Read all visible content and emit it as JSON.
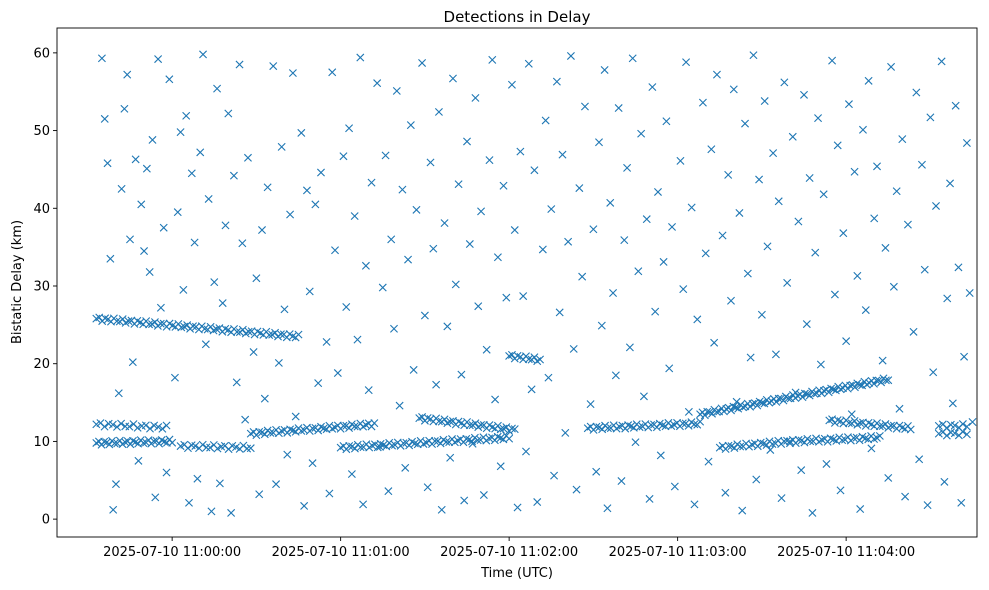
{
  "chart_data": {
    "type": "scatter",
    "title": "Detections in Delay",
    "xlabel": "Time (UTC)",
    "ylabel": "Bistatic Delay (km)",
    "x_units": "seconds after 2025-07-10 11:00:00",
    "xlim": [
      -41,
      286.6
    ],
    "ylim": [
      -2.3,
      63.2
    ],
    "xticks": [
      {
        "value": 0,
        "label": "2025-07-10 11:00:00"
      },
      {
        "value": 60,
        "label": "2025-07-10 11:01:00"
      },
      {
        "value": 120,
        "label": "2025-07-10 11:02:00"
      },
      {
        "value": 180,
        "label": "2025-07-10 11:03:00"
      },
      {
        "value": 240,
        "label": "2025-07-10 11:04:00"
      }
    ],
    "yticks": [
      0,
      10,
      20,
      30,
      40,
      50,
      60
    ],
    "grid": false,
    "marker": "x",
    "color": "#1f77b4",
    "tracks": [
      {
        "t0": -27,
        "v0": 25.8,
        "t1": 45,
        "v1": 23.5,
        "n": 70
      },
      {
        "t0": -27,
        "v0": 9.8,
        "t1": 0,
        "v1": 10.0,
        "n": 30
      },
      {
        "t0": -27,
        "v0": 12.2,
        "t1": -2,
        "v1": 11.8,
        "n": 18
      },
      {
        "t0": 3,
        "v0": 9.4,
        "t1": 28,
        "v1": 9.2,
        "n": 20
      },
      {
        "t0": 28,
        "v0": 11.0,
        "t1": 72,
        "v1": 12.2,
        "n": 45
      },
      {
        "t0": 60,
        "v0": 9.2,
        "t1": 120,
        "v1": 10.5,
        "n": 60
      },
      {
        "t0": 88,
        "v0": 13.0,
        "t1": 122,
        "v1": 11.5,
        "n": 35
      },
      {
        "t0": 120,
        "v0": 21.0,
        "t1": 131,
        "v1": 20.5,
        "n": 12
      },
      {
        "t0": 148,
        "v0": 11.7,
        "t1": 188,
        "v1": 12.3,
        "n": 40
      },
      {
        "t0": 188,
        "v0": 13.5,
        "t1": 255,
        "v1": 18.0,
        "n": 80
      },
      {
        "t0": 195,
        "v0": 9.2,
        "t1": 220,
        "v1": 10.0,
        "n": 25
      },
      {
        "t0": 220,
        "v0": 10.0,
        "t1": 252,
        "v1": 10.5,
        "n": 32
      },
      {
        "t0": 234,
        "v0": 12.7,
        "t1": 263,
        "v1": 11.7,
        "n": 30
      },
      {
        "t0": 273,
        "v0": 12.0,
        "t1": 283,
        "v1": 12.0,
        "n": 8
      },
      {
        "t0": 273,
        "v0": 11.0,
        "t1": 283,
        "v1": 11.0,
        "n": 8
      }
    ],
    "noise": [
      [
        -25,
        59.3
      ],
      [
        -24,
        51.5
      ],
      [
        -23,
        45.8
      ],
      [
        -22,
        33.5
      ],
      [
        -21,
        1.2
      ],
      [
        -20,
        4.5
      ],
      [
        -19,
        16.2
      ],
      [
        -18,
        42.5
      ],
      [
        -17,
        52.8
      ],
      [
        -16,
        57.2
      ],
      [
        -15,
        36
      ],
      [
        -14,
        20.2
      ],
      [
        -13,
        46.3
      ],
      [
        -12,
        7.5
      ],
      [
        -11,
        40.5
      ],
      [
        -10,
        34.5
      ],
      [
        -9,
        45.1
      ],
      [
        -8,
        31.8
      ],
      [
        -7,
        48.8
      ],
      [
        -6,
        2.8
      ],
      [
        -5,
        59.2
      ],
      [
        -4,
        27.2
      ],
      [
        -3,
        37.5
      ],
      [
        -2,
        6
      ],
      [
        -1,
        56.6
      ],
      [
        1,
        18.2
      ],
      [
        2,
        39.5
      ],
      [
        3,
        49.8
      ],
      [
        4,
        29.5
      ],
      [
        5,
        51.9
      ],
      [
        6,
        2.1
      ],
      [
        7,
        44.5
      ],
      [
        8,
        35.6
      ],
      [
        9,
        5.2
      ],
      [
        10,
        47.2
      ],
      [
        11,
        59.8
      ],
      [
        12,
        22.5
      ],
      [
        13,
        41.2
      ],
      [
        14,
        1
      ],
      [
        15,
        30.5
      ],
      [
        16,
        55.4
      ],
      [
        17,
        4.6
      ],
      [
        18,
        27.8
      ],
      [
        19,
        37.8
      ],
      [
        20,
        52.2
      ],
      [
        21,
        0.8
      ],
      [
        22,
        44.2
      ],
      [
        23,
        17.6
      ],
      [
        24,
        58.5
      ],
      [
        25,
        35.5
      ],
      [
        26,
        12.8
      ],
      [
        27,
        46.5
      ],
      [
        29,
        21.5
      ],
      [
        30,
        31
      ],
      [
        31,
        3.2
      ],
      [
        32,
        37.2
      ],
      [
        33,
        15.5
      ],
      [
        34,
        42.7
      ],
      [
        36,
        58.3
      ],
      [
        37,
        4.5
      ],
      [
        38,
        20.1
      ],
      [
        39,
        47.9
      ],
      [
        40,
        27
      ],
      [
        41,
        8.3
      ],
      [
        42,
        39.2
      ],
      [
        43,
        57.4
      ],
      [
        44,
        13.2
      ],
      [
        46,
        49.7
      ],
      [
        47,
        1.7
      ],
      [
        48,
        42.3
      ],
      [
        49,
        29.3
      ],
      [
        50,
        7.2
      ],
      [
        51,
        40.5
      ],
      [
        52,
        17.5
      ],
      [
        53,
        44.6
      ],
      [
        55,
        22.8
      ],
      [
        56,
        3.3
      ],
      [
        57,
        57.5
      ],
      [
        58,
        34.6
      ],
      [
        59,
        18.8
      ],
      [
        61,
        46.7
      ],
      [
        62,
        27.3
      ],
      [
        63,
        50.3
      ],
      [
        64,
        5.8
      ],
      [
        65,
        39
      ],
      [
        66,
        23.1
      ],
      [
        67,
        59.4
      ],
      [
        68,
        1.9
      ],
      [
        69,
        32.6
      ],
      [
        70,
        16.6
      ],
      [
        71,
        43.3
      ],
      [
        73,
        56.1
      ],
      [
        74,
        9.3
      ],
      [
        75,
        29.8
      ],
      [
        76,
        46.8
      ],
      [
        77,
        3.6
      ],
      [
        78,
        36
      ],
      [
        79,
        24.5
      ],
      [
        80,
        55.1
      ],
      [
        81,
        14.6
      ],
      [
        82,
        42.4
      ],
      [
        83,
        6.6
      ],
      [
        84,
        33.4
      ],
      [
        85,
        50.7
      ],
      [
        86,
        19.2
      ],
      [
        87,
        39.8
      ],
      [
        89,
        58.7
      ],
      [
        90,
        26.2
      ],
      [
        91,
        4.1
      ],
      [
        92,
        45.9
      ],
      [
        93,
        34.8
      ],
      [
        94,
        17.3
      ],
      [
        95,
        52.4
      ],
      [
        96,
        1.2
      ],
      [
        97,
        38.1
      ],
      [
        98,
        24.8
      ],
      [
        99,
        7.9
      ],
      [
        100,
        56.7
      ],
      [
        101,
        30.2
      ],
      [
        102,
        43.1
      ],
      [
        103,
        18.6
      ],
      [
        104,
        2.4
      ],
      [
        105,
        48.6
      ],
      [
        106,
        35.4
      ],
      [
        107,
        9.7
      ],
      [
        108,
        54.2
      ],
      [
        109,
        27.4
      ],
      [
        110,
        39.6
      ],
      [
        111,
        3.1
      ],
      [
        112,
        21.8
      ],
      [
        113,
        46.2
      ],
      [
        114,
        59.1
      ],
      [
        115,
        15.4
      ],
      [
        116,
        33.7
      ],
      [
        117,
        6.8
      ],
      [
        118,
        42.9
      ],
      [
        119,
        28.5
      ],
      [
        121,
        55.9
      ],
      [
        122,
        37.2
      ],
      [
        123,
        1.5
      ],
      [
        124,
        47.3
      ],
      [
        125,
        28.7
      ],
      [
        126,
        8.7
      ],
      [
        127,
        58.6
      ],
      [
        128,
        16.7
      ],
      [
        129,
        44.9
      ],
      [
        130,
        2.2
      ],
      [
        132,
        34.7
      ],
      [
        133,
        51.3
      ],
      [
        134,
        18.2
      ],
      [
        135,
        39.9
      ],
      [
        136,
        5.6
      ],
      [
        137,
        56.3
      ],
      [
        138,
        26.6
      ],
      [
        139,
        46.9
      ],
      [
        140,
        11.1
      ],
      [
        141,
        35.7
      ],
      [
        142,
        59.6
      ],
      [
        143,
        21.9
      ],
      [
        144,
        3.8
      ],
      [
        145,
        42.6
      ],
      [
        146,
        31.2
      ],
      [
        147,
        53.1
      ],
      [
        149,
        14.8
      ],
      [
        150,
        37.3
      ],
      [
        151,
        6.1
      ],
      [
        152,
        48.5
      ],
      [
        153,
        24.9
      ],
      [
        154,
        57.8
      ],
      [
        155,
        1.4
      ],
      [
        156,
        40.7
      ],
      [
        157,
        29.1
      ],
      [
        158,
        18.5
      ],
      [
        159,
        52.9
      ],
      [
        160,
        4.9
      ],
      [
        161,
        35.9
      ],
      [
        162,
        45.2
      ],
      [
        163,
        22.1
      ],
      [
        164,
        59.3
      ],
      [
        165,
        9.9
      ],
      [
        166,
        31.9
      ],
      [
        167,
        49.6
      ],
      [
        168,
        15.8
      ],
      [
        169,
        38.6
      ],
      [
        170,
        2.6
      ],
      [
        171,
        55.6
      ],
      [
        172,
        26.7
      ],
      [
        173,
        42.1
      ],
      [
        174,
        8.2
      ],
      [
        175,
        33.1
      ],
      [
        176,
        51.2
      ],
      [
        177,
        19.4
      ],
      [
        178,
        37.6
      ],
      [
        179,
        4.2
      ],
      [
        181,
        46.1
      ],
      [
        182,
        29.6
      ],
      [
        183,
        58.8
      ],
      [
        184,
        13.8
      ],
      [
        185,
        40.1
      ],
      [
        186,
        1.9
      ],
      [
        187,
        25.7
      ],
      [
        189,
        53.6
      ],
      [
        190,
        34.2
      ],
      [
        191,
        7.4
      ],
      [
        192,
        47.6
      ],
      [
        193,
        22.7
      ],
      [
        194,
        57.2
      ],
      [
        196,
        36.5
      ],
      [
        197,
        3.4
      ],
      [
        198,
        44.3
      ],
      [
        199,
        28.1
      ],
      [
        200,
        55.3
      ],
      [
        201,
        15.1
      ],
      [
        202,
        39.4
      ],
      [
        203,
        1.1
      ],
      [
        204,
        50.9
      ],
      [
        205,
        31.6
      ],
      [
        206,
        20.8
      ],
      [
        207,
        59.7
      ],
      [
        208,
        5.1
      ],
      [
        209,
        43.7
      ],
      [
        210,
        26.3
      ],
      [
        211,
        53.8
      ],
      [
        212,
        35.1
      ],
      [
        213,
        8.9
      ],
      [
        214,
        47.1
      ],
      [
        215,
        21.2
      ],
      [
        216,
        40.9
      ],
      [
        217,
        2.7
      ],
      [
        218,
        56.2
      ],
      [
        219,
        30.4
      ],
      [
        221,
        49.2
      ],
      [
        222,
        16.3
      ],
      [
        223,
        38.3
      ],
      [
        224,
        6.3
      ],
      [
        225,
        54.6
      ],
      [
        226,
        25.1
      ],
      [
        227,
        43.9
      ],
      [
        228,
        0.8
      ],
      [
        229,
        34.3
      ],
      [
        230,
        51.6
      ],
      [
        231,
        19.9
      ],
      [
        232,
        41.8
      ],
      [
        233,
        7.1
      ],
      [
        235,
        59
      ],
      [
        236,
        28.9
      ],
      [
        237,
        48.1
      ],
      [
        238,
        3.7
      ],
      [
        239,
        36.8
      ],
      [
        240,
        22.9
      ],
      [
        241,
        53.4
      ],
      [
        242,
        13.5
      ],
      [
        243,
        44.7
      ],
      [
        244,
        31.3
      ],
      [
        245,
        1.3
      ],
      [
        246,
        50.1
      ],
      [
        247,
        26.9
      ],
      [
        248,
        56.4
      ],
      [
        249,
        9.1
      ],
      [
        250,
        38.7
      ],
      [
        251,
        45.4
      ],
      [
        253,
        20.4
      ],
      [
        254,
        34.9
      ],
      [
        255,
        5.3
      ],
      [
        256,
        58.2
      ],
      [
        257,
        29.9
      ],
      [
        258,
        42.2
      ],
      [
        259,
        14.2
      ],
      [
        260,
        48.9
      ],
      [
        261,
        2.9
      ],
      [
        262,
        37.9
      ],
      [
        264,
        24.1
      ],
      [
        265,
        54.9
      ],
      [
        266,
        7.7
      ],
      [
        267,
        45.6
      ],
      [
        268,
        32.1
      ],
      [
        269,
        1.8
      ],
      [
        270,
        51.7
      ],
      [
        271,
        18.9
      ],
      [
        272,
        40.3
      ],
      [
        274,
        58.9
      ],
      [
        275,
        4.8
      ],
      [
        276,
        28.4
      ],
      [
        277,
        43.2
      ],
      [
        278,
        14.9
      ],
      [
        279,
        53.2
      ],
      [
        280,
        32.4
      ],
      [
        281,
        2.1
      ],
      [
        282,
        20.9
      ],
      [
        283,
        48.4
      ],
      [
        284,
        29.1
      ],
      [
        285,
        12.5
      ]
    ]
  }
}
